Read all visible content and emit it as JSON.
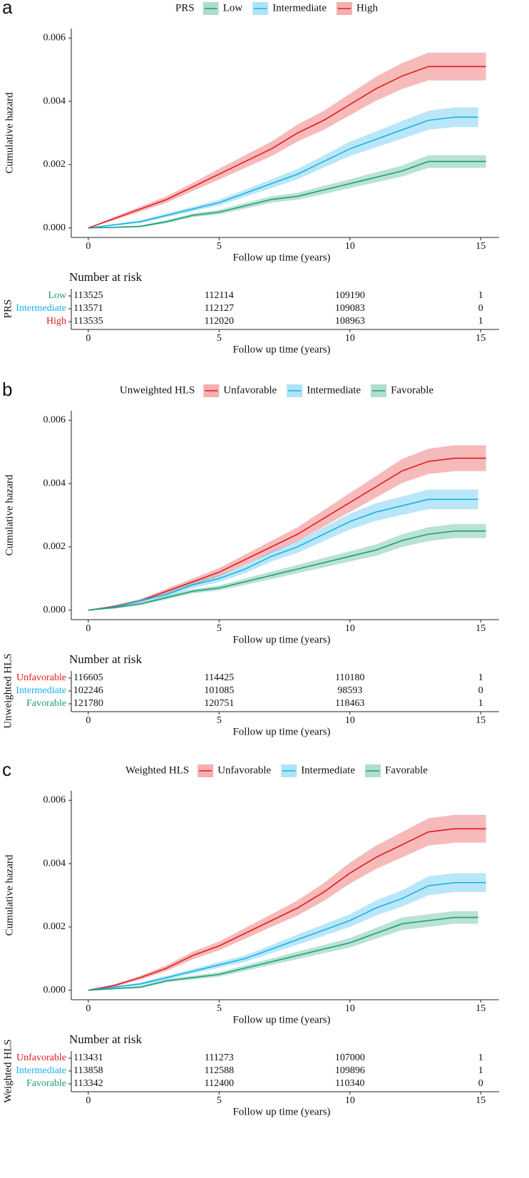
{
  "chart_data": [
    {
      "type": "line",
      "panel_label": "a",
      "legend_title": "PRS",
      "y_label": "Cumulative hazard",
      "x_label": "Follow up time (years)",
      "table_title": "Number at risk",
      "xlim": [
        -0.65,
        15.7
      ],
      "xticks": [
        0,
        5,
        10,
        15
      ],
      "ylim": [
        -0.0003,
        0.0063
      ],
      "yticks": [
        {
          "value": 0,
          "label": "0.000"
        },
        {
          "value": 0.002,
          "label": "0.002"
        },
        {
          "value": 0.004,
          "label": "0.004"
        },
        {
          "value": 0.006,
          "label": "0.006"
        }
      ],
      "series": [
        {
          "name": "Low",
          "color": "#1b9e77",
          "x": [
            0,
            1,
            2,
            3,
            4,
            5,
            6,
            7,
            8,
            9,
            10,
            11,
            12,
            13,
            14,
            15.2
          ],
          "values": [
            0,
            2e-05,
            5e-05,
            0.0002,
            0.0004,
            0.0005,
            0.0007,
            0.0009,
            0.001,
            0.0012,
            0.0014,
            0.0016,
            0.0018,
            0.0021,
            0.0021,
            0.0021
          ],
          "lower": [
            0,
            0,
            2e-05,
            0.00015,
            0.00034,
            0.00043,
            0.00061,
            0.0008,
            0.00089,
            0.00107,
            0.00126,
            0.00144,
            0.00163,
            0.0019,
            0.0019,
            0.0019
          ],
          "upper": [
            0,
            4e-05,
            8e-05,
            0.00025,
            0.00046,
            0.00057,
            0.00079,
            0.001,
            0.00111,
            0.00133,
            0.00154,
            0.00176,
            0.00197,
            0.0023,
            0.0023,
            0.0023
          ],
          "at_risk": [
            113525,
            112114,
            109190,
            1
          ]
        },
        {
          "name": "Intermediate",
          "color": "#1ab0e8",
          "x": [
            0,
            1,
            2,
            3,
            4,
            5,
            6,
            7,
            8,
            9,
            10,
            11,
            12,
            13,
            14,
            14.9
          ],
          "values": [
            0,
            0.0001,
            0.0002,
            0.0004,
            0.0006,
            0.0008,
            0.0011,
            0.0014,
            0.0017,
            0.0021,
            0.0025,
            0.0028,
            0.0031,
            0.0034,
            0.0035,
            0.0035
          ],
          "lower": [
            0,
            7e-05,
            0.00016,
            0.00034,
            0.00053,
            0.00071,
            0.00099,
            0.00126,
            0.00154,
            0.00191,
            0.00227,
            0.00255,
            0.00282,
            0.0031,
            0.00319,
            0.00319
          ],
          "upper": [
            0,
            0.00013,
            0.00024,
            0.00046,
            0.00067,
            0.00089,
            0.00121,
            0.00154,
            0.00186,
            0.00229,
            0.00273,
            0.00305,
            0.00338,
            0.0037,
            0.00381,
            0.00381
          ],
          "at_risk": [
            113571,
            112127,
            109083,
            0
          ]
        },
        {
          "name": "High",
          "color": "#e31a1c",
          "x": [
            0,
            1,
            2,
            3,
            4,
            5,
            6,
            7,
            8,
            9,
            10,
            11,
            12,
            13,
            14,
            15.2
          ],
          "values": [
            0,
            0.0003,
            0.0006,
            0.0009,
            0.0013,
            0.0017,
            0.0021,
            0.0025,
            0.003,
            0.0034,
            0.0039,
            0.0044,
            0.0048,
            0.0051,
            0.0051,
            0.0051
          ],
          "lower": [
            0,
            0.00025,
            0.00052,
            0.0008,
            0.00117,
            0.00153,
            0.0019,
            0.00227,
            0.00273,
            0.0031,
            0.00356,
            0.00402,
            0.00439,
            0.00466,
            0.00466,
            0.00466
          ],
          "upper": [
            0,
            0.00035,
            0.00068,
            0.001,
            0.00143,
            0.00187,
            0.0023,
            0.00273,
            0.00327,
            0.0037,
            0.00424,
            0.00478,
            0.00521,
            0.00554,
            0.00554,
            0.00554
          ],
          "at_risk": [
            113535,
            112020,
            108963,
            1
          ]
        }
      ]
    },
    {
      "type": "line",
      "panel_label": "b",
      "legend_title": "Unweighted HLS",
      "y_label": "Cumulative hazard",
      "x_label": "Follow up time (years)",
      "table_title": "Number at risk",
      "xlim": [
        -0.65,
        15.7
      ],
      "xticks": [
        0,
        5,
        10,
        15
      ],
      "ylim": [
        -0.0003,
        0.0063
      ],
      "yticks": [
        {
          "value": 0,
          "label": "0.000"
        },
        {
          "value": 0.002,
          "label": "0.002"
        },
        {
          "value": 0.004,
          "label": "0.004"
        },
        {
          "value": 0.006,
          "label": "0.006"
        }
      ],
      "series": [
        {
          "name": "Unfavorable",
          "color": "#e31a1c",
          "x": [
            0,
            1,
            2,
            3,
            4,
            5,
            6,
            7,
            8,
            9,
            10,
            11,
            12,
            13,
            14,
            15.2
          ],
          "values": [
            0,
            0.00012,
            0.0003,
            0.0006,
            0.0009,
            0.0012,
            0.0016,
            0.002,
            0.0024,
            0.0029,
            0.0034,
            0.0039,
            0.0044,
            0.0047,
            0.0048,
            0.0048
          ],
          "lower": [
            0,
            8e-05,
            0.00025,
            0.00052,
            0.0008,
            0.00107,
            0.00144,
            0.00181,
            0.00218,
            0.00264,
            0.0031,
            0.00356,
            0.00402,
            0.0043,
            0.00439,
            0.00439
          ],
          "upper": [
            0,
            0.00016,
            0.00035,
            0.00068,
            0.001,
            0.00133,
            0.00176,
            0.00219,
            0.00262,
            0.00316,
            0.0037,
            0.00424,
            0.00478,
            0.0051,
            0.00521,
            0.00521
          ],
          "at_risk": [
            116605,
            114425,
            110180,
            1
          ]
        },
        {
          "name": "Intermediate",
          "color": "#1ab0e8",
          "x": [
            0,
            1,
            2,
            3,
            4,
            5,
            6,
            7,
            8,
            9,
            10,
            11,
            12,
            13,
            14,
            14.9
          ],
          "values": [
            0,
            0.0001,
            0.0003,
            0.0005,
            0.0008,
            0.001,
            0.0013,
            0.0017,
            0.002,
            0.0024,
            0.0028,
            0.0031,
            0.0033,
            0.0035,
            0.0035,
            0.0035
          ],
          "lower": [
            0,
            7e-05,
            0.00025,
            0.00043,
            0.0007,
            0.00089,
            0.00117,
            0.00154,
            0.00181,
            0.00218,
            0.00255,
            0.00282,
            0.00301,
            0.00319,
            0.00319,
            0.00319
          ],
          "upper": [
            0,
            0.00013,
            0.00035,
            0.00057,
            0.0009,
            0.00111,
            0.00143,
            0.00186,
            0.00219,
            0.00262,
            0.00305,
            0.00338,
            0.00359,
            0.00381,
            0.00381,
            0.00381
          ],
          "at_risk": [
            102246,
            101085,
            98593,
            0
          ]
        },
        {
          "name": "Favorable",
          "color": "#1b9e77",
          "x": [
            0,
            1,
            2,
            3,
            4,
            5,
            6,
            7,
            8,
            9,
            10,
            11,
            12,
            13,
            14,
            15.2
          ],
          "values": [
            0,
            8e-05,
            0.0002,
            0.0004,
            0.0006,
            0.0007,
            0.0009,
            0.0011,
            0.0013,
            0.0015,
            0.0017,
            0.0019,
            0.0022,
            0.0024,
            0.0025,
            0.0025
          ],
          "lower": [
            0,
            5e-05,
            0.00016,
            0.00034,
            0.00053,
            0.00062,
            0.0008,
            0.00098,
            0.00117,
            0.00135,
            0.00154,
            0.00172,
            0.002,
            0.00218,
            0.00228,
            0.00228
          ],
          "upper": [
            0,
            0.00011,
            0.00024,
            0.00046,
            0.00067,
            0.00078,
            0.001,
            0.00122,
            0.00143,
            0.00165,
            0.00186,
            0.00208,
            0.0024,
            0.00262,
            0.00272,
            0.00272
          ],
          "at_risk": [
            121780,
            120751,
            118463,
            1
          ]
        }
      ]
    },
    {
      "type": "line",
      "panel_label": "c",
      "legend_title": "Weighted HLS",
      "y_label": "Cumulative hazard",
      "x_label": "Follow up time (years)",
      "table_title": "Number at risk",
      "xlim": [
        -0.65,
        15.7
      ],
      "xticks": [
        0,
        5,
        10,
        15
      ],
      "ylim": [
        -0.0003,
        0.0063
      ],
      "yticks": [
        {
          "value": 0,
          "label": "0.000"
        },
        {
          "value": 0.002,
          "label": "0.002"
        },
        {
          "value": 0.004,
          "label": "0.004"
        },
        {
          "value": 0.006,
          "label": "0.006"
        }
      ],
      "series": [
        {
          "name": "Unfavorable",
          "color": "#e31a1c",
          "x": [
            0,
            1,
            2,
            3,
            4,
            5,
            6,
            7,
            8,
            9,
            10,
            11,
            12,
            13,
            14,
            15.2
          ],
          "values": [
            0,
            0.00015,
            0.0004,
            0.0007,
            0.0011,
            0.0014,
            0.0018,
            0.0022,
            0.0026,
            0.0031,
            0.0037,
            0.0042,
            0.0046,
            0.005,
            0.0051,
            0.0051
          ],
          "lower": [
            0,
            0.00011,
            0.00034,
            0.00061,
            0.00098,
            0.00126,
            0.00163,
            0.002,
            0.00236,
            0.00282,
            0.00337,
            0.00383,
            0.0042,
            0.00457,
            0.00466,
            0.00466
          ],
          "upper": [
            0,
            0.00019,
            0.00046,
            0.00079,
            0.00122,
            0.00154,
            0.00197,
            0.0024,
            0.00284,
            0.00338,
            0.00403,
            0.00457,
            0.005,
            0.00543,
            0.00554,
            0.00554
          ],
          "at_risk": [
            113431,
            111273,
            107000,
            1
          ]
        },
        {
          "name": "Intermediate",
          "color": "#1ab0e8",
          "x": [
            0,
            1,
            2,
            3,
            4,
            5,
            6,
            7,
            8,
            9,
            10,
            11,
            12,
            13,
            14,
            15.2
          ],
          "values": [
            0,
            0.0001,
            0.0002,
            0.0004,
            0.0006,
            0.0008,
            0.001,
            0.0013,
            0.0016,
            0.0019,
            0.0022,
            0.0026,
            0.0029,
            0.0033,
            0.0034,
            0.0034
          ],
          "lower": [
            0,
            7e-05,
            0.00016,
            0.00034,
            0.00053,
            0.00071,
            0.0009,
            0.00117,
            0.00144,
            0.00172,
            0.002,
            0.00236,
            0.00264,
            0.003,
            0.0031,
            0.0031
          ],
          "upper": [
            0,
            0.00013,
            0.00024,
            0.00046,
            0.00067,
            0.00089,
            0.0011,
            0.00143,
            0.00176,
            0.00208,
            0.0024,
            0.00284,
            0.00316,
            0.0036,
            0.0037,
            0.0037
          ],
          "at_risk": [
            113858,
            112588,
            109896,
            1
          ]
        },
        {
          "name": "Favorable",
          "color": "#1b9e77",
          "x": [
            0,
            1,
            2,
            3,
            4,
            5,
            6,
            7,
            8,
            9,
            10,
            11,
            12,
            13,
            14,
            14.9
          ],
          "values": [
            0,
            5e-05,
            0.0001,
            0.0003,
            0.0004,
            0.0005,
            0.0007,
            0.0009,
            0.0011,
            0.0013,
            0.0015,
            0.0018,
            0.0021,
            0.0022,
            0.0023,
            0.0023
          ],
          "lower": [
            0,
            3e-05,
            6e-05,
            0.00025,
            0.00034,
            0.00043,
            0.00061,
            0.0008,
            0.00098,
            0.00117,
            0.00135,
            0.00163,
            0.0019,
            0.002,
            0.0021,
            0.0021
          ],
          "upper": [
            0,
            7e-05,
            0.00014,
            0.00035,
            0.00046,
            0.00057,
            0.00079,
            0.001,
            0.00122,
            0.00143,
            0.00165,
            0.00197,
            0.0023,
            0.0024,
            0.0025,
            0.0025
          ],
          "at_risk": [
            113342,
            112400,
            110340,
            0
          ]
        }
      ]
    }
  ]
}
